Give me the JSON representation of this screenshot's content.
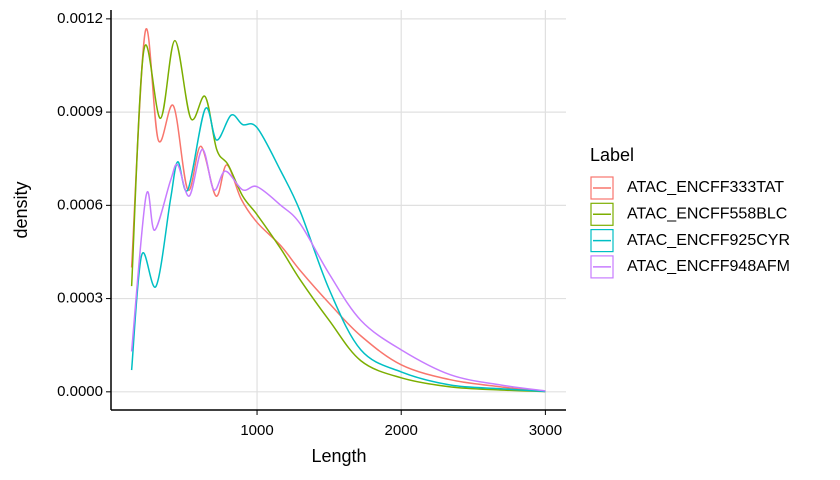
{
  "chart_data": {
    "type": "line",
    "x_label": "Length",
    "y_label": "density",
    "legend_title": "Label",
    "xlim": [
      -13,
      3143
    ],
    "ylim": [
      -5.85e-05,
      0.0012285
    ],
    "xticks": [
      1000,
      2000,
      3000
    ],
    "yticks": [
      {
        "value": 0,
        "label": "0.0000"
      },
      {
        "value": 0.0003,
        "label": "0.0003"
      },
      {
        "value": 0.0006,
        "label": "0.0006"
      },
      {
        "value": 0.0009,
        "label": "0.0009"
      },
      {
        "value": 0.0012,
        "label": "0.0012"
      }
    ],
    "grid": true,
    "legend": "right",
    "series": [
      {
        "name": "ATAC_ENCFF333TAT",
        "color": "#F8766D",
        "x": [
          130,
          225,
          315,
          420,
          520,
          610,
          715,
          790,
          890,
          1000,
          1165,
          1300,
          1510,
          1720,
          2000,
          2340,
          2690,
          3000
        ],
        "values": [
          0.0004,
          0.00116,
          0.00081,
          0.00092,
          0.00065,
          0.00079,
          0.00063,
          0.00073,
          0.00062,
          0.000545,
          0.00047,
          0.00039,
          0.00028,
          0.00018,
          8.7e-05,
          3.9e-05,
          1.6e-05,
          1e-06
        ]
      },
      {
        "name": "ATAC_ENCFF558BLC",
        "color": "#7CAE00",
        "x": [
          130,
          215,
          330,
          430,
          540,
          640,
          720,
          800,
          900,
          1000,
          1165,
          1300,
          1500,
          1720,
          2000,
          2340,
          2690,
          3000
        ],
        "values": [
          0.00034,
          0.0011,
          0.00088,
          0.00113,
          0.00088,
          0.00095,
          0.00078,
          0.00073,
          0.00063,
          0.00057,
          0.00046,
          0.00036,
          0.00023,
          0.0001,
          4.5e-05,
          1.6e-05,
          6e-06,
          1e-06
        ]
      },
      {
        "name": "ATAC_ENCFF925CYR",
        "color": "#00BFC4",
        "x": [
          130,
          200,
          300,
          400,
          450,
          520,
          640,
          720,
          820,
          900,
          1000,
          1165,
          1300,
          1500,
          1720,
          2000,
          2340,
          2690,
          3000
        ],
        "values": [
          7e-05,
          0.00044,
          0.00034,
          0.00062,
          0.00074,
          0.00065,
          0.00091,
          0.00081,
          0.00089,
          0.00086,
          0.00085,
          0.00071,
          0.00058,
          0.00033,
          0.000135,
          6.4e-05,
          2.2e-05,
          1e-05,
          1e-06
        ]
      },
      {
        "name": "ATAC_ENCFF948AFM",
        "color": "#C77CFF",
        "x": [
          130,
          230,
          290,
          400,
          450,
          530,
          620,
          700,
          780,
          900,
          1000,
          1165,
          1300,
          1500,
          1720,
          2000,
          2340,
          2690,
          3000
        ],
        "values": [
          0.00013,
          0.00063,
          0.00052,
          0.00068,
          0.00073,
          0.00063,
          0.00078,
          0.00065,
          0.00071,
          0.00065,
          0.00066,
          0.0006,
          0.00054,
          0.00038,
          0.00023,
          0.000135,
          5.5e-05,
          2.2e-05,
          3e-06
        ]
      }
    ]
  }
}
